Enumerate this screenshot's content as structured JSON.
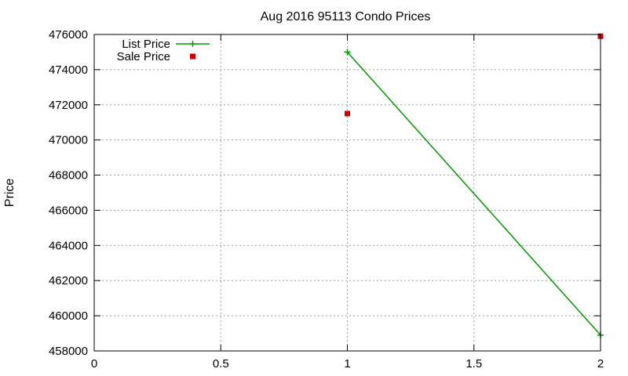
{
  "chart_data": {
    "type": "line",
    "title": "Aug 2016 95113 Condo Prices",
    "xlabel": "",
    "ylabel": "Price",
    "xlim": [
      0,
      2
    ],
    "ylim": [
      458000,
      476000
    ],
    "x_ticks": [
      0,
      0.5,
      1,
      1.5,
      2
    ],
    "x_tick_labels": [
      "0",
      "0.5",
      "1",
      "1.5",
      "2"
    ],
    "y_ticks": [
      458000,
      460000,
      462000,
      464000,
      466000,
      468000,
      470000,
      472000,
      474000,
      476000
    ],
    "y_tick_labels": [
      "458000",
      "460000",
      "462000",
      "464000",
      "466000",
      "468000",
      "470000",
      "472000",
      "474000",
      "476000"
    ],
    "grid": true,
    "legend_position": "top-left",
    "series": [
      {
        "name": "List Price",
        "style": "line-with-plus-markers",
        "color": "#009900",
        "points": [
          {
            "x": 1,
            "y": 475000
          },
          {
            "x": 2,
            "y": 458900
          }
        ]
      },
      {
        "name": "Sale Price",
        "style": "square-markers",
        "color": "#cc0000",
        "points": [
          {
            "x": 1,
            "y": 471500
          },
          {
            "x": 2,
            "y": 475900
          }
        ]
      }
    ]
  }
}
